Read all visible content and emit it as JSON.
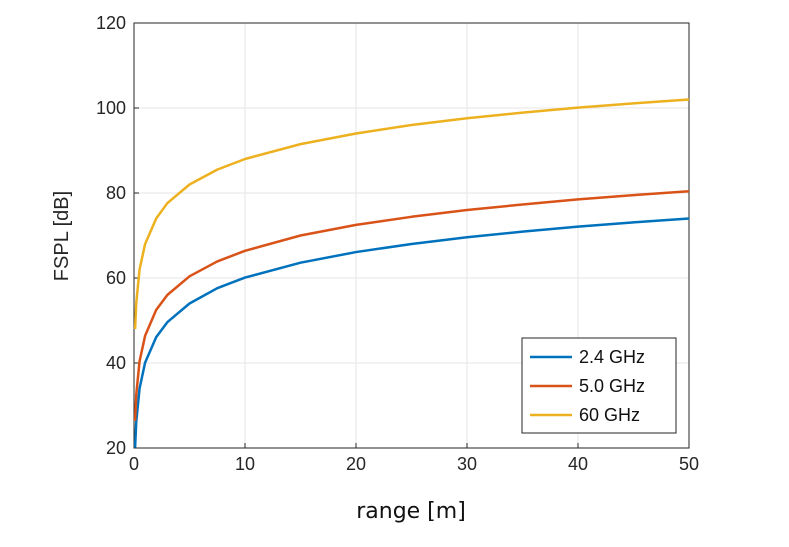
{
  "chart_data": {
    "type": "line",
    "title": "",
    "xlabel": "range [m]",
    "ylabel": "FSPL [dB]",
    "xlim": [
      0,
      50
    ],
    "ylim": [
      20,
      120
    ],
    "xticks": [
      0,
      10,
      20,
      30,
      40,
      50
    ],
    "yticks": [
      20,
      40,
      60,
      80,
      100,
      120
    ],
    "grid": true,
    "legend_position": "bottom-right",
    "x": [
      0.1,
      0.2,
      0.5,
      1,
      2,
      3,
      5,
      7.5,
      10,
      15,
      20,
      25,
      30,
      35,
      40,
      45,
      50
    ],
    "series": [
      {
        "name": "2.4 GHz",
        "color": "#0072BD",
        "values": [
          20.1,
          26.1,
          34.0,
          40.1,
          46.1,
          49.6,
          54.0,
          57.6,
          60.1,
          63.6,
          66.1,
          68.0,
          69.6,
          70.9,
          72.1,
          73.1,
          74.0
        ]
      },
      {
        "name": "5.0 GHz",
        "color": "#D95319",
        "values": [
          26.4,
          32.5,
          40.4,
          46.4,
          52.5,
          56.0,
          60.4,
          63.9,
          66.4,
          70.0,
          72.5,
          74.4,
          76.0,
          77.3,
          78.5,
          79.5,
          80.4
        ]
      },
      {
        "name": "60 GHz",
        "color": "#EDB120",
        "values": [
          48.0,
          54.0,
          62.0,
          68.0,
          74.0,
          77.6,
          82.0,
          85.5,
          88.0,
          91.5,
          94.0,
          96.0,
          97.6,
          98.9,
          100.1,
          101.1,
          102.0
        ]
      }
    ]
  }
}
